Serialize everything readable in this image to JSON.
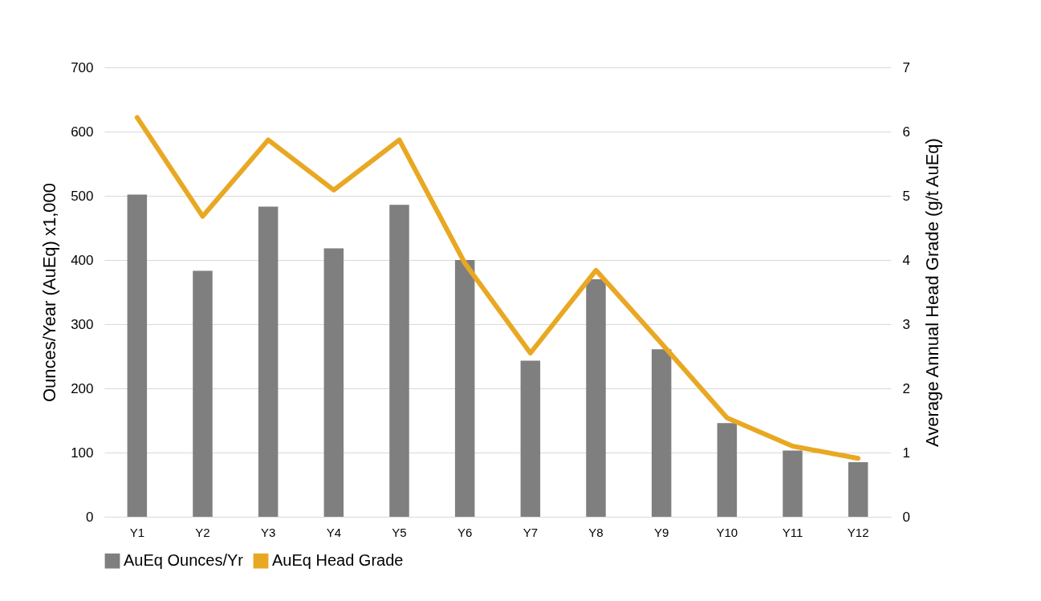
{
  "chart_data": {
    "type": "bar",
    "categories": [
      "Y1",
      "Y2",
      "Y3",
      "Y4",
      "Y5",
      "Y6",
      "Y7",
      "Y8",
      "Y9",
      "Y10",
      "Y11",
      "Y12"
    ],
    "ylabel": "Ounces/Year (AuEq) x1,000",
    "y2label": "Average Annual Head Grade (g/t AuEq)",
    "ylim": [
      0,
      700
    ],
    "yticks": [
      0,
      100,
      200,
      300,
      400,
      500,
      600,
      700
    ],
    "y2lim": [
      0,
      7
    ],
    "y2ticks": [
      0,
      1,
      2,
      3,
      4,
      5,
      6,
      7
    ],
    "grid": "y",
    "legend": "bottom",
    "series": [
      {
        "name": "AuEq Ounces/Yr",
        "color": "#7f7f7f",
        "values": [
          502,
          383,
          483,
          418,
          486,
          400,
          243,
          370,
          261,
          146,
          103,
          85
        ]
      },
      {
        "name": "AuEq Head Grade",
        "color": "#e9a823",
        "type": "line",
        "axis": "y2",
        "values": [
          6.22,
          4.68,
          5.87,
          5.09,
          5.87,
          3.95,
          2.55,
          3.84,
          2.7,
          1.54,
          1.1,
          0.91
        ]
      }
    ]
  }
}
